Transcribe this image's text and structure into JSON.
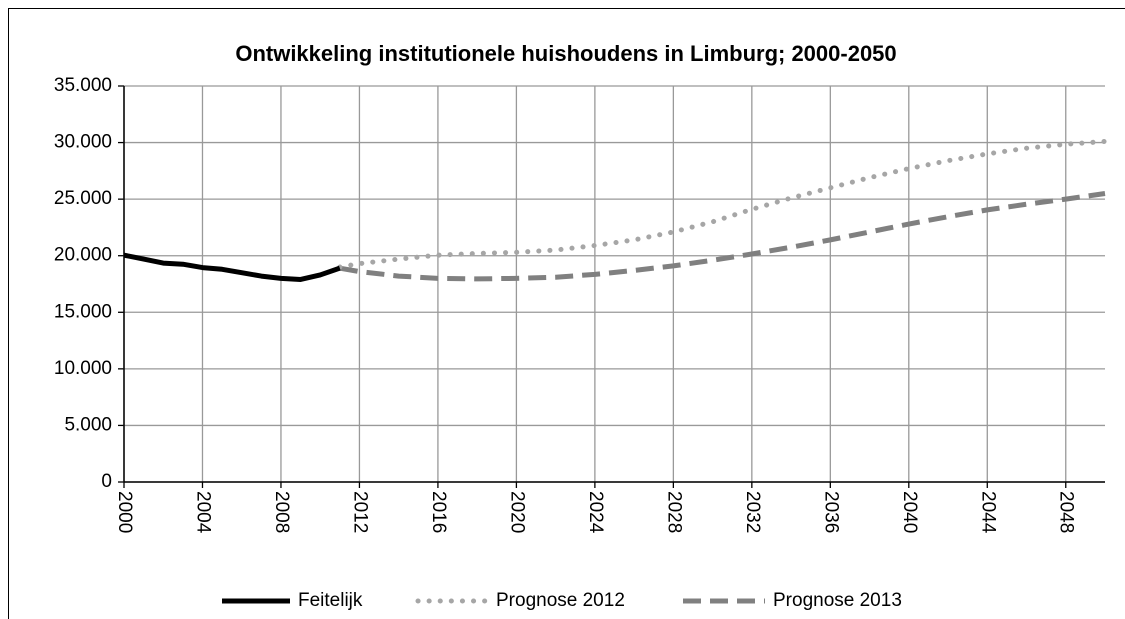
{
  "chart_data": {
    "type": "line",
    "title": "Ontwikkeling institutionele huishoudens in Limburg; 2000-2050",
    "xlim": [
      2000,
      2050
    ],
    "xticks": [
      2000,
      2004,
      2008,
      2012,
      2016,
      2020,
      2024,
      2028,
      2032,
      2036,
      2040,
      2044,
      2048
    ],
    "ylim": [
      0,
      35000
    ],
    "yticks": [
      0,
      {
        "value": 5000,
        "label": "5.000"
      },
      {
        "value": 10000,
        "label": "10.000"
      },
      {
        "value": 15000,
        "label": "15.000"
      },
      {
        "value": 20000,
        "label": "20.000"
      },
      {
        "value": 25000,
        "label": "25.000"
      },
      {
        "value": 30000,
        "label": "30.000"
      },
      {
        "value": 35000,
        "label": "35.000"
      }
    ],
    "grid": true,
    "legend": "bottom",
    "series": [
      {
        "name": "Feitelijk",
        "color": "#000000",
        "style": "solid",
        "x": [
          2000,
          2001,
          2002,
          2003,
          2004,
          2005,
          2006,
          2007,
          2008,
          2009,
          2010,
          2011
        ],
        "values": [
          20050,
          19700,
          19350,
          19250,
          18950,
          18800,
          18500,
          18200,
          18000,
          17900,
          18300,
          18900
        ]
      },
      {
        "name": "Prognose 2012",
        "color": "#a6a6a6",
        "style": "dotted",
        "x": [
          2011,
          2012,
          2014,
          2016,
          2018,
          2020,
          2022,
          2024,
          2026,
          2028,
          2030,
          2032,
          2034,
          2036,
          2038,
          2040,
          2042,
          2044,
          2046,
          2048,
          2050
        ],
        "values": [
          19000,
          19300,
          19700,
          20050,
          20200,
          20300,
          20500,
          20900,
          21400,
          22100,
          23000,
          24100,
          25100,
          26000,
          26900,
          27700,
          28400,
          29000,
          29500,
          29850,
          30100
        ]
      },
      {
        "name": "Prognose 2013",
        "color": "#808080",
        "style": "dashed",
        "x": [
          2011,
          2012,
          2014,
          2016,
          2018,
          2020,
          2022,
          2024,
          2026,
          2028,
          2030,
          2032,
          2034,
          2036,
          2038,
          2040,
          2042,
          2044,
          2046,
          2048,
          2050
        ],
        "values": [
          18900,
          18600,
          18200,
          18000,
          17950,
          18000,
          18100,
          18350,
          18700,
          19100,
          19600,
          20150,
          20750,
          21400,
          22100,
          22800,
          23450,
          24050,
          24550,
          25000,
          25500
        ]
      }
    ]
  }
}
